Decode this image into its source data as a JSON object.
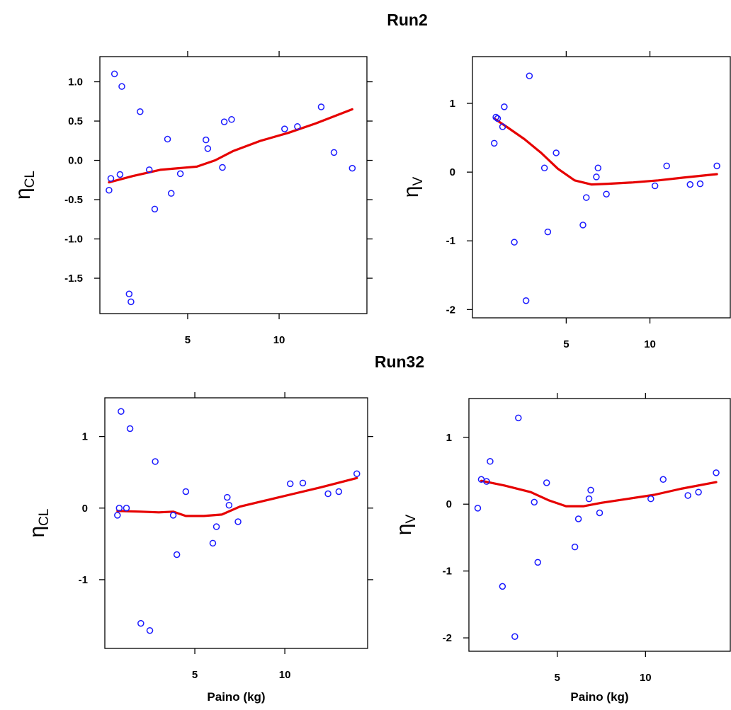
{
  "titles": {
    "top": "Run2",
    "bottom": "Run32"
  },
  "chart_data": [
    {
      "type": "scatter",
      "run": "Run2",
      "ylabel_main": "η",
      "ylabel_sub": "CL",
      "xlabel": "",
      "xlim": [
        0.2,
        14.8
      ],
      "ylim": [
        -1.95,
        1.32
      ],
      "xticks": [
        5,
        10
      ],
      "yticks": [
        1.0,
        0.5,
        0.0,
        -0.5,
        -1.0,
        -1.5
      ],
      "ytick_labels": [
        "1.0",
        "0.5",
        "0.0",
        "-0.5",
        "-1.0",
        "-1.5"
      ],
      "x": [
        0.7,
        0.8,
        1.0,
        1.3,
        1.4,
        1.8,
        1.9,
        2.4,
        2.9,
        3.2,
        3.9,
        4.1,
        4.6,
        6.0,
        6.1,
        6.9,
        7.0,
        7.4,
        10.3,
        11.0,
        12.3,
        13.0,
        14.0
      ],
      "y": [
        -0.38,
        -0.23,
        1.1,
        -0.18,
        0.94,
        -1.7,
        -1.8,
        0.62,
        -0.12,
        -0.62,
        0.27,
        -0.42,
        -0.17,
        0.26,
        0.15,
        -0.09,
        0.49,
        0.52,
        0.4,
        0.43,
        0.68,
        0.1,
        -0.1
      ],
      "smooth_x": [
        0.7,
        2.0,
        3.5,
        4.5,
        5.5,
        6.5,
        7.5,
        9.0,
        10.5,
        12.0,
        14.0
      ],
      "smooth_y": [
        -0.28,
        -0.2,
        -0.12,
        -0.1,
        -0.08,
        0.0,
        0.12,
        0.25,
        0.35,
        0.47,
        0.65
      ]
    },
    {
      "type": "scatter",
      "run": "Run2",
      "ylabel_main": "η",
      "ylabel_sub": "V",
      "xlabel": "",
      "xlim": [
        -0.6,
        14.8
      ],
      "ylim": [
        -2.12,
        1.68
      ],
      "xticks": [
        5,
        10
      ],
      "yticks": [
        1,
        0,
        -1,
        -2
      ],
      "ytick_labels": [
        "1",
        "0",
        "-1",
        "-2"
      ],
      "x": [
        0.7,
        0.8,
        0.9,
        1.2,
        1.3,
        1.9,
        2.6,
        2.8,
        3.7,
        3.9,
        4.4,
        6.0,
        6.2,
        6.8,
        6.9,
        7.4,
        10.3,
        11.0,
        12.4,
        13.0,
        14.0
      ],
      "y": [
        0.42,
        0.8,
        0.78,
        0.66,
        0.95,
        -1.02,
        -1.87,
        1.4,
        0.06,
        -0.87,
        0.28,
        -0.77,
        -0.37,
        -0.07,
        0.06,
        -0.32,
        -0.2,
        0.09,
        -0.18,
        -0.17,
        0.09
      ],
      "smooth_x": [
        0.7,
        1.5,
        2.5,
        3.5,
        4.5,
        5.5,
        6.5,
        7.5,
        9.0,
        10.5,
        12.0,
        14.0
      ],
      "smooth_y": [
        0.78,
        0.65,
        0.48,
        0.28,
        0.05,
        -0.12,
        -0.18,
        -0.17,
        -0.15,
        -0.12,
        -0.08,
        -0.03
      ]
    },
    {
      "type": "scatter",
      "run": "Run32",
      "ylabel_main": "η",
      "ylabel_sub": "CL",
      "xlabel": "Paino (kg)",
      "xlim": [
        0.0,
        14.6
      ],
      "ylim": [
        -1.96,
        1.54
      ],
      "xticks": [
        5,
        10
      ],
      "yticks": [
        1,
        0,
        -1
      ],
      "ytick_labels": [
        "1",
        "0",
        "-1"
      ],
      "x": [
        0.7,
        0.8,
        0.9,
        1.2,
        1.4,
        2.0,
        2.5,
        2.8,
        3.8,
        4.0,
        4.5,
        6.0,
        6.2,
        6.8,
        6.9,
        7.4,
        10.3,
        11.0,
        12.4,
        13.0,
        14.0
      ],
      "y": [
        -0.1,
        0.0,
        1.35,
        0.0,
        1.11,
        -1.61,
        -1.71,
        0.65,
        -0.1,
        -0.65,
        0.23,
        -0.49,
        -0.26,
        0.15,
        0.04,
        -0.19,
        0.34,
        0.35,
        0.2,
        0.23,
        0.48
      ],
      "smooth_x": [
        0.7,
        2.0,
        3.0,
        3.8,
        4.5,
        5.5,
        6.5,
        7.5,
        9.0,
        10.5,
        12.0,
        14.0
      ],
      "smooth_y": [
        -0.04,
        -0.05,
        -0.06,
        -0.05,
        -0.11,
        -0.11,
        -0.09,
        0.02,
        0.11,
        0.2,
        0.29,
        0.42
      ]
    },
    {
      "type": "scatter",
      "run": "Run32",
      "ylabel_main": "η",
      "ylabel_sub": "V",
      "xlabel": "Paino (kg)",
      "xlim": [
        0.0,
        14.8
      ],
      "ylim": [
        -2.2,
        1.58
      ],
      "xticks": [
        5,
        10
      ],
      "yticks": [
        1,
        0,
        -1,
        -2
      ],
      "ytick_labels": [
        "1",
        "0",
        "-1",
        "-2"
      ],
      "x": [
        0.5,
        0.7,
        1.0,
        1.2,
        1.9,
        2.6,
        2.8,
        3.7,
        3.9,
        4.4,
        6.0,
        6.2,
        6.8,
        6.9,
        7.4,
        10.3,
        11.0,
        12.4,
        13.0,
        14.0
      ],
      "y": [
        -0.06,
        0.37,
        0.34,
        0.64,
        -1.23,
        -1.98,
        1.29,
        0.03,
        -0.87,
        0.32,
        -0.64,
        -0.22,
        0.08,
        0.21,
        -0.13,
        0.08,
        0.37,
        0.13,
        0.18,
        0.47
      ],
      "smooth_x": [
        0.7,
        2.0,
        3.5,
        4.5,
        5.5,
        6.5,
        7.5,
        9.0,
        10.5,
        12.0,
        14.0
      ],
      "smooth_y": [
        0.35,
        0.28,
        0.18,
        0.06,
        -0.03,
        -0.03,
        0.02,
        0.08,
        0.14,
        0.23,
        0.33
      ]
    }
  ]
}
